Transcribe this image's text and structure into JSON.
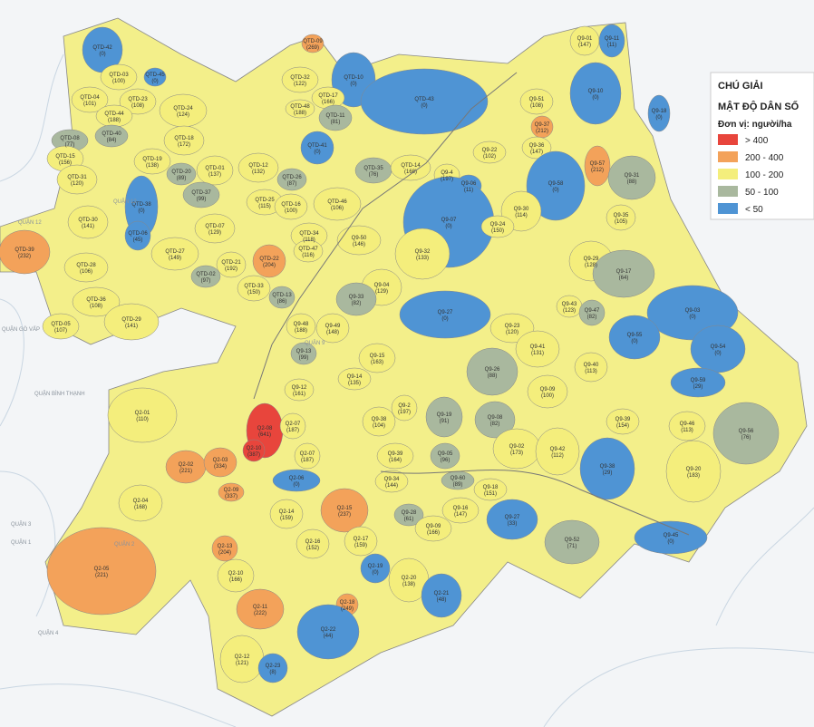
{
  "legend": {
    "title": "CHÚ GIẢI",
    "subtitle": "MẬT ĐỘ DÂN SỐ",
    "unit": "Đơn vị: người/ha",
    "items": [
      {
        "label": "> 400",
        "color": "#e8453c"
      },
      {
        "label": "200 - 400",
        "color": "#f3a25a"
      },
      {
        "label": "100 - 200",
        "color": "#f4ee7c"
      },
      {
        "label": "50 - 100",
        "color": "#a9b89e"
      },
      {
        "label": "< 50",
        "color": "#4f94d4"
      }
    ]
  },
  "districts": [
    "QUẬN 12",
    "QUẬN 12",
    "QUẬN GÒ VẤP",
    "QUẬN BÌNH THẠNH",
    "QUẬN 3",
    "QUẬN 1",
    "QUẬN 4",
    "QUẬN 2",
    "QUẬN 9"
  ],
  "zones": [
    {
      "code": "QTD-42",
      "density": "(0)"
    },
    {
      "code": "QTD-03",
      "density": "(100)"
    },
    {
      "code": "QTD-45",
      "density": "(0)"
    },
    {
      "code": "QTD-04",
      "density": "(101)"
    },
    {
      "code": "QTD-23",
      "density": "(108)"
    },
    {
      "code": "QTD-44",
      "density": "(188)"
    },
    {
      "code": "QTD-24",
      "density": "(124)"
    },
    {
      "code": "QTD-40",
      "density": "(84)"
    },
    {
      "code": "QTD-08",
      "density": "(77)"
    },
    {
      "code": "QTD-18",
      "density": "(172)"
    },
    {
      "code": "QTD-15",
      "density": "(156)"
    },
    {
      "code": "QTD-19",
      "density": "(138)"
    },
    {
      "code": "QTD-31",
      "density": "(120)"
    },
    {
      "code": "QTD-20",
      "density": "(89)"
    },
    {
      "code": "QTD-01",
      "density": "(137)"
    },
    {
      "code": "QTD-12",
      "density": "(132)"
    },
    {
      "code": "QTD-26",
      "density": "(87)"
    },
    {
      "code": "QTD-37",
      "density": "(99)"
    },
    {
      "code": "QTD-38",
      "density": "(0)"
    },
    {
      "code": "QTD-30",
      "density": "(141)"
    },
    {
      "code": "QTD-06",
      "density": "(45)"
    },
    {
      "code": "QTD-25",
      "density": "(115)"
    },
    {
      "code": "QTD-16",
      "density": "(100)"
    },
    {
      "code": "QTD-46",
      "density": "(106)"
    },
    {
      "code": "QTD-07",
      "density": "(129)"
    },
    {
      "code": "QTD-34",
      "density": "(118)"
    },
    {
      "code": "QTD-39",
      "density": "(232)"
    },
    {
      "code": "QTD-28",
      "density": "(106)"
    },
    {
      "code": "QTD-27",
      "density": "(149)"
    },
    {
      "code": "QTD-47",
      "density": "(116)"
    },
    {
      "code": "QTD-21",
      "density": "(192)"
    },
    {
      "code": "QTD-22",
      "density": "(204)"
    },
    {
      "code": "QTD-02",
      "density": "(97)"
    },
    {
      "code": "QTD-33",
      "density": "(150)"
    },
    {
      "code": "QTD-13",
      "density": "(86)"
    },
    {
      "code": "QTD-36",
      "density": "(108)"
    },
    {
      "code": "QTD-29",
      "density": "(141)"
    },
    {
      "code": "QTD-05",
      "density": "(107)"
    },
    {
      "code": "QTD-09",
      "density": "(269)"
    },
    {
      "code": "QTD-32",
      "density": "(122)"
    },
    {
      "code": "QTD-10",
      "density": "(0)"
    },
    {
      "code": "QTD-43",
      "density": "(0)"
    },
    {
      "code": "QTD-17",
      "density": "(166)"
    },
    {
      "code": "QTD-48",
      "density": "(188)"
    },
    {
      "code": "QTD-11",
      "density": "(81)"
    },
    {
      "code": "QTD-41",
      "density": "(0)"
    },
    {
      "code": "QTD-35",
      "density": "(76)"
    },
    {
      "code": "QTD-14",
      "density": "(168)"
    },
    {
      "code": "Q9-01",
      "density": "(147)"
    },
    {
      "code": "Q9-11",
      "density": "(11)"
    },
    {
      "code": "Q9-10",
      "density": "(0)"
    },
    {
      "code": "Q9-18",
      "density": "(0)"
    },
    {
      "code": "Q9-51",
      "density": "(108)"
    },
    {
      "code": "Q9-37",
      "density": "(212)"
    },
    {
      "code": "Q9-36",
      "density": "(147)"
    },
    {
      "code": "Q9-57",
      "density": "(212)"
    },
    {
      "code": "Q9-22",
      "density": "(102)"
    },
    {
      "code": "Q9-58",
      "density": "(0)"
    },
    {
      "code": "Q9-31",
      "density": "(88)"
    },
    {
      "code": "Q9-4",
      "density": "(197)"
    },
    {
      "code": "Q9-06",
      "density": "(11)"
    },
    {
      "code": "Q9-30",
      "density": "(114)"
    },
    {
      "code": "Q9-35",
      "density": "(105)"
    },
    {
      "code": "Q9-07",
      "density": "(0)"
    },
    {
      "code": "Q9-24",
      "density": "(150)"
    },
    {
      "code": "Q9-50",
      "density": "(146)"
    },
    {
      "code": "Q9-32",
      "density": "(133)"
    },
    {
      "code": "Q9-29",
      "density": "(128)"
    },
    {
      "code": "Q9-17",
      "density": "(64)"
    },
    {
      "code": "Q9-04",
      "density": "(129)"
    },
    {
      "code": "Q9-33",
      "density": "(82)"
    },
    {
      "code": "Q9-43",
      "density": "(123)"
    },
    {
      "code": "Q9-47",
      "density": "(82)"
    },
    {
      "code": "Q9-03",
      "density": "(0)"
    },
    {
      "code": "Q9-27",
      "density": "(0)"
    },
    {
      "code": "Q9-48",
      "density": "(188)"
    },
    {
      "code": "Q9-49",
      "density": "(148)"
    },
    {
      "code": "Q9-23",
      "density": "(120)"
    },
    {
      "code": "Q9-55",
      "density": "(0)"
    },
    {
      "code": "Q9-54",
      "density": "(0)"
    },
    {
      "code": "Q9-13",
      "density": "(99)"
    },
    {
      "code": "Q9-41",
      "density": "(131)"
    },
    {
      "code": "Q9-15",
      "density": "(163)"
    },
    {
      "code": "Q9-40",
      "density": "(113)"
    },
    {
      "code": "Q9-26",
      "density": "(88)"
    },
    {
      "code": "Q9-14",
      "density": "(135)"
    },
    {
      "code": "Q9-59",
      "density": "(29)"
    },
    {
      "code": "Q9-12",
      "density": "(161)"
    },
    {
      "code": "Q9-09",
      "density": "(100)"
    },
    {
      "code": "Q9-2",
      "density": "(197)"
    },
    {
      "code": "Q9-19",
      "density": "(91)"
    },
    {
      "code": "Q9-38",
      "density": "(104)"
    },
    {
      "code": "Q9-08",
      "density": "(82)"
    },
    {
      "code": "Q9-39",
      "density": "(154)"
    },
    {
      "code": "Q9-46",
      "density": "(113)"
    },
    {
      "code": "Q9-56",
      "density": "(76)"
    },
    {
      "code": "Q9-39",
      "density": "(164)"
    },
    {
      "code": "Q9-05",
      "density": "(96)"
    },
    {
      "code": "Q9-02",
      "density": "(173)"
    },
    {
      "code": "Q9-42",
      "density": "(112)"
    },
    {
      "code": "Q9-38",
      "density": "(29)"
    },
    {
      "code": "Q9-20",
      "density": "(183)"
    },
    {
      "code": "Q9-34",
      "density": "(144)"
    },
    {
      "code": "Q9-60",
      "density": "(89)"
    },
    {
      "code": "Q9-18",
      "density": "(151)"
    },
    {
      "code": "Q9-16",
      "density": "(147)"
    },
    {
      "code": "Q9-28",
      "density": "(61)"
    },
    {
      "code": "Q9-09",
      "density": "(166)"
    },
    {
      "code": "Q9-27",
      "density": "(33)"
    },
    {
      "code": "Q9-52",
      "density": "(71)"
    },
    {
      "code": "Q9-45",
      "density": "(0)"
    },
    {
      "code": "Q2-08",
      "density": "(641)"
    },
    {
      "code": "Q2-07",
      "density": "(187)"
    },
    {
      "code": "Q2-01",
      "density": "(110)"
    },
    {
      "code": "Q2-10",
      "density": "(387)"
    },
    {
      "code": "Q2-07",
      "density": "(187)"
    },
    {
      "code": "Q2-02",
      "density": "(221)"
    },
    {
      "code": "Q2-03",
      "density": "(334)"
    },
    {
      "code": "Q2-06",
      "density": "(0)"
    },
    {
      "code": "Q2-09",
      "density": "(337)"
    },
    {
      "code": "Q2-04",
      "density": "(168)"
    },
    {
      "code": "Q2-14",
      "density": "(159)"
    },
    {
      "code": "Q2-15",
      "density": "(237)"
    },
    {
      "code": "Q2-05",
      "density": "(221)"
    },
    {
      "code": "Q2-13",
      "density": "(204)"
    },
    {
      "code": "Q2-16",
      "density": "(152)"
    },
    {
      "code": "Q2-17",
      "density": "(159)"
    },
    {
      "code": "Q2-19",
      "density": "(0)"
    },
    {
      "code": "Q2-10",
      "density": "(166)"
    },
    {
      "code": "Q2-20",
      "density": "(138)"
    },
    {
      "code": "Q2-21",
      "density": "(48)"
    },
    {
      "code": "Q2-11",
      "density": "(222)"
    },
    {
      "code": "Q2-18",
      "density": "(249)"
    },
    {
      "code": "Q2-22",
      "density": "(44)"
    },
    {
      "code": "Q2-12",
      "density": "(121)"
    },
    {
      "code": "Q2-23",
      "density": "(8)"
    }
  ]
}
